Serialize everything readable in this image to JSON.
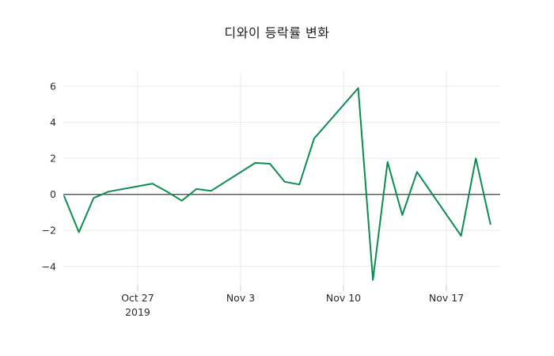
{
  "title": "디와이 등락률 변화",
  "colors": {
    "background": "#ffffff",
    "line": "#0c8c50",
    "zero_line": "#3d3d3d",
    "grid": "#e9e9e9",
    "tick_mark": "#cccccc",
    "tick_text": "#2b2b2b",
    "title_text": "#1c1c1c"
  },
  "chart_data": {
    "type": "line",
    "title": "디와이 등락률 변화",
    "xlabel": "",
    "ylabel": "",
    "grid": true,
    "zero_line": true,
    "legend": null,
    "series": [
      {
        "name": "디와이 등락률",
        "dates": [
          "2019-10-22",
          "2019-10-23",
          "2019-10-24",
          "2019-10-25",
          "2019-10-28",
          "2019-10-29",
          "2019-10-30",
          "2019-10-31",
          "2019-11-01",
          "2019-11-04",
          "2019-11-05",
          "2019-11-06",
          "2019-11-07",
          "2019-11-08",
          "2019-11-11",
          "2019-11-12",
          "2019-11-13",
          "2019-11-14",
          "2019-11-15",
          "2019-11-18",
          "2019-11-19",
          "2019-11-20"
        ],
        "values": [
          -0.1,
          -2.1,
          -0.2,
          0.15,
          0.6,
          0.15,
          -0.35,
          0.3,
          0.2,
          1.75,
          1.7,
          0.7,
          0.55,
          3.1,
          5.9,
          -4.75,
          1.8,
          -1.15,
          1.25,
          -2.3,
          2.0,
          -1.65
        ]
      }
    ],
    "x_ticks": [
      {
        "label": "Oct 27",
        "sublabel": "2019",
        "date": "2019-10-27"
      },
      {
        "label": "Nov 3",
        "sublabel": "",
        "date": "2019-11-03"
      },
      {
        "label": "Nov 10",
        "sublabel": "",
        "date": "2019-11-10"
      },
      {
        "label": "Nov 17",
        "sublabel": "",
        "date": "2019-11-17"
      }
    ],
    "y_ticks": [
      {
        "label": "−4",
        "value": -4
      },
      {
        "label": "−2",
        "value": -2
      },
      {
        "label": "0",
        "value": 0
      },
      {
        "label": "2",
        "value": 2
      },
      {
        "label": "4",
        "value": 4
      },
      {
        "label": "6",
        "value": 6
      }
    ],
    "ylim": [
      -5.02,
      6.84
    ],
    "xlim_days_from_first_tick": [
      -5.06,
      24.66
    ]
  }
}
